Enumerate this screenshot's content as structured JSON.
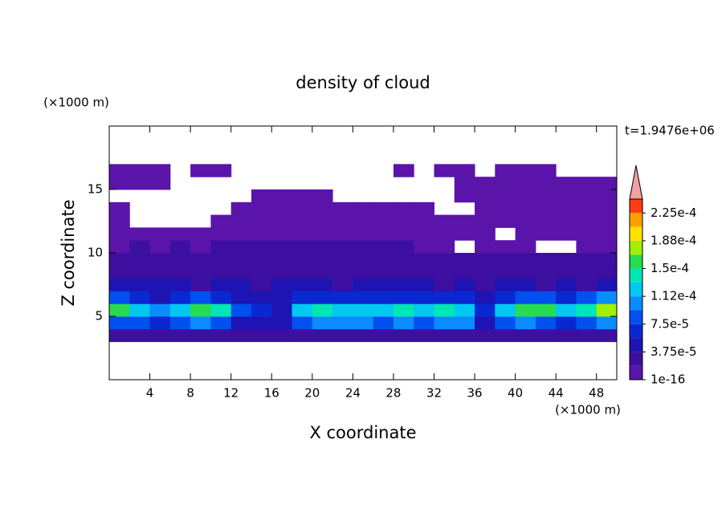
{
  "chart_data": {
    "type": "contour",
    "title": "density of cloud",
    "xlabel": "X coordinate",
    "ylabel": "Z coordinate",
    "x_unit": "(×1000 m)",
    "y_unit": "(×1000 m)",
    "annotation": "t=1.9476e+06",
    "xlim": [
      0,
      50
    ],
    "ylim": [
      0,
      20
    ],
    "xticks": [
      4,
      8,
      12,
      16,
      20,
      24,
      28,
      32,
      36,
      40,
      44,
      48
    ],
    "yticks": [
      5,
      10,
      15
    ],
    "x": [
      1,
      3,
      5,
      7,
      9,
      11,
      13,
      15,
      17,
      19,
      21,
      23,
      25,
      27,
      29,
      31,
      33,
      35,
      37,
      39,
      41,
      43,
      45,
      47,
      49
    ],
    "y": [
      3.5,
      4.5,
      5.5,
      6.5,
      7.5,
      8.5,
      9.5,
      10.5,
      11.5,
      12.5,
      13.5,
      14.5,
      15.5,
      16.5
    ],
    "z": [
      [
        2e-05,
        2e-05,
        2e-05,
        2e-05,
        2e-05,
        2e-05,
        2e-05,
        2e-05,
        2e-05,
        2e-05,
        2e-05,
        2e-05,
        2e-05,
        2e-05,
        2e-05,
        2e-05,
        2e-05,
        2e-05,
        2e-05,
        2e-05,
        2e-05,
        2e-05,
        2e-05,
        2e-05,
        2e-05
      ],
      [
        9e-05,
        8e-05,
        6e-05,
        9e-05,
        0.0001,
        9e-05,
        5e-05,
        4e-05,
        4e-05,
        9e-05,
        0.0001,
        0.0001,
        0.00011,
        9e-05,
        0.0001,
        9e-05,
        0.0001,
        0.0001,
        5e-05,
        8e-05,
        0.0001,
        9e-05,
        7e-05,
        9e-05,
        0.0001
      ],
      [
        0.00015,
        0.00012,
        0.00011,
        0.00013,
        0.00016,
        0.00014,
        9e-05,
        6e-05,
        5e-05,
        0.00012,
        0.00014,
        0.00013,
        0.00012,
        0.00012,
        0.00014,
        0.00013,
        0.00014,
        0.00013,
        6e-05,
        0.00012,
        0.00015,
        0.00016,
        0.00012,
        0.00014,
        0.00017
      ],
      [
        9e-05,
        6e-05,
        5e-05,
        6e-05,
        8e-05,
        7e-05,
        5e-05,
        4e-05,
        4e-05,
        6e-05,
        7e-05,
        6e-05,
        6e-05,
        6e-05,
        7e-05,
        6e-05,
        7e-05,
        6e-05,
        4e-05,
        6e-05,
        8e-05,
        9e-05,
        7e-05,
        8e-05,
        0.0001
      ],
      [
        4e-05,
        4e-05,
        4e-05,
        4e-05,
        3e-05,
        4e-05,
        4e-05,
        3e-05,
        4e-05,
        4e-05,
        4e-05,
        3e-05,
        4e-05,
        4e-05,
        4e-05,
        4e-05,
        3e-05,
        4e-05,
        3e-05,
        4e-05,
        4e-05,
        3e-05,
        4e-05,
        3e-05,
        4e-05
      ],
      [
        3e-05,
        2e-05,
        3e-05,
        2e-05,
        3e-05,
        2e-05,
        3e-05,
        2e-05,
        3e-05,
        3e-05,
        3e-05,
        3e-05,
        3e-05,
        2e-05,
        3e-05,
        2e-05,
        3e-05,
        2e-05,
        3e-05,
        2e-05,
        3e-05,
        2e-05,
        3e-05,
        2e-05,
        3e-05
      ],
      [
        2e-05,
        2e-05,
        2e-05,
        2e-05,
        2e-05,
        2e-05,
        2e-05,
        2e-05,
        2e-05,
        2e-05,
        3e-05,
        3e-05,
        3e-05,
        3e-05,
        3e-05,
        2e-05,
        2e-05,
        2e-05,
        2e-05,
        2e-05,
        2e-05,
        2e-05,
        2e-05,
        2e-05,
        2e-05
      ],
      [
        1e-05,
        2e-05,
        1e-05,
        2e-05,
        1e-05,
        2e-05,
        2e-05,
        2e-05,
        2e-05,
        2e-05,
        2e-05,
        2e-05,
        2e-05,
        2e-05,
        2e-05,
        1e-05,
        1e-05,
        null,
        1e-05,
        1e-05,
        1e-05,
        null,
        null,
        1e-05,
        1e-05
      ],
      [
        1e-05,
        1e-05,
        1e-05,
        1e-05,
        1e-05,
        1e-05,
        1e-05,
        1e-05,
        1e-05,
        1e-05,
        1e-05,
        1e-05,
        1e-05,
        1e-05,
        1e-05,
        1e-05,
        1e-05,
        1e-05,
        1e-05,
        null,
        1e-05,
        1e-05,
        1e-05,
        1e-05,
        1e-05
      ],
      [
        1e-05,
        null,
        null,
        null,
        null,
        1e-05,
        1e-05,
        1e-05,
        1e-05,
        1e-05,
        1e-05,
        1e-05,
        1e-05,
        1e-05,
        1e-05,
        1e-05,
        1e-05,
        1e-05,
        1e-05,
        1e-05,
        1e-05,
        1e-05,
        1e-05,
        1e-05,
        1e-05
      ],
      [
        1e-05,
        null,
        null,
        null,
        null,
        null,
        1e-05,
        1e-05,
        1e-05,
        1e-05,
        1e-05,
        1e-05,
        1e-05,
        1e-05,
        1e-05,
        1e-05,
        null,
        null,
        1e-05,
        1e-05,
        1e-05,
        1e-05,
        1e-05,
        1e-05,
        1e-05
      ],
      [
        null,
        null,
        null,
        null,
        null,
        null,
        null,
        1e-05,
        1e-05,
        1e-05,
        1e-05,
        null,
        null,
        null,
        null,
        null,
        null,
        1e-05,
        1e-05,
        1e-05,
        1e-05,
        1e-05,
        1e-05,
        1e-05,
        1e-05
      ],
      [
        1e-05,
        1e-05,
        1e-05,
        null,
        null,
        null,
        null,
        null,
        null,
        null,
        null,
        null,
        null,
        null,
        null,
        null,
        null,
        1e-05,
        1e-05,
        1e-05,
        1e-05,
        1e-05,
        1e-05,
        1e-05,
        1e-05
      ],
      [
        1e-05,
        1e-05,
        1e-05,
        null,
        1e-05,
        1e-05,
        null,
        null,
        null,
        null,
        null,
        null,
        null,
        null,
        1e-05,
        null,
        1e-05,
        1e-05,
        null,
        1e-05,
        1e-05,
        1e-05,
        null,
        null,
        null
      ]
    ],
    "levels": [
      1e-16,
      1.875e-05,
      3.75e-05,
      5.625e-05,
      7.5e-05,
      9.375e-05,
      0.0001125,
      0.00013125,
      0.00015,
      0.00016875,
      0.0001875,
      0.00020625,
      0.000225,
      0.00024375
    ],
    "colors": [
      "#5a14aa",
      "#3c0fa0",
      "#1e14b4",
      "#0a28d2",
      "#0050f0",
      "#0a8cff",
      "#00c8f0",
      "#00e6b4",
      "#28dc50",
      "#a0f000",
      "#ffe100",
      "#ffa000",
      "#ff3c14"
    ],
    "extend_color": "#f0a0a0",
    "colorbar_ticks": [
      {
        "value": 1e-16,
        "label": "1e-16"
      },
      {
        "value": 3.75e-05,
        "label": "3.75e-5"
      },
      {
        "value": 7.5e-05,
        "label": "7.5e-5"
      },
      {
        "value": 0.0001125,
        "label": "1.12e-4"
      },
      {
        "value": 0.00015,
        "label": "1.5e-4"
      },
      {
        "value": 0.0001875,
        "label": "1.88e-4"
      },
      {
        "value": 0.000225,
        "label": "2.25e-4"
      }
    ]
  }
}
